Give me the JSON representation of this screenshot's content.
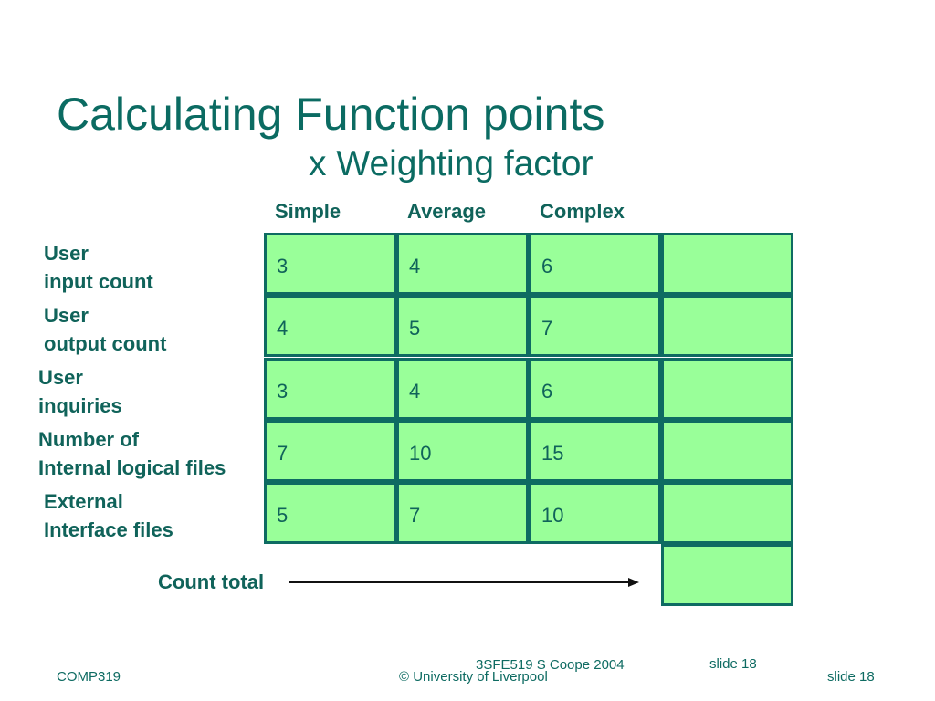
{
  "slide": {
    "title": "Calculating Function points",
    "subtitle": "x Weighting factor",
    "columns": [
      "Simple",
      "Average",
      "Complex"
    ],
    "rows": [
      {
        "label_line1": "User",
        "label_line2": "input count",
        "values": [
          "3",
          "4",
          "6"
        ],
        "total": ""
      },
      {
        "label_line1": "User",
        "label_line2": "output count",
        "values": [
          "4",
          "5",
          "7"
        ],
        "total": ""
      },
      {
        "label_line1": "User",
        "label_line2": "inquiries",
        "values": [
          "3",
          "4",
          "6"
        ],
        "total": ""
      },
      {
        "label_line1": "Number of",
        "label_line2": "Internal logical files",
        "values": [
          "7",
          "10",
          "15"
        ],
        "total": ""
      },
      {
        "label_line1": "External",
        "label_line2": "Interface files",
        "values": [
          "5",
          "7",
          "10"
        ],
        "total": ""
      }
    ],
    "count_total_label": "Count total",
    "count_total_value": ""
  },
  "footer": {
    "course": "COMP319",
    "module_ref": "3SFE519 S Coope 2004",
    "module_slide": "slide 18",
    "copyright": "© University of Liverpool",
    "slide_number": "slide  18"
  },
  "colors": {
    "heading": "#0b6b62",
    "cell_fill": "#99ff99",
    "cell_border": "#0e6b62"
  }
}
